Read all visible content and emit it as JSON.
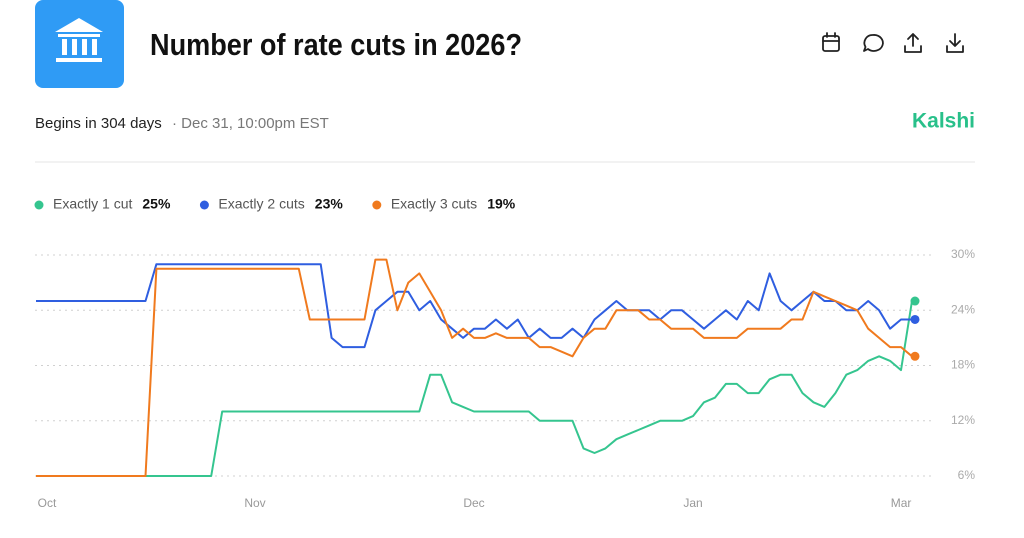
{
  "header": {
    "title": "Number of rate cuts in 2026?",
    "begins": "Begins in 304 days",
    "date": "· Dec 31, 10:00pm EST",
    "brand": "Kalshi"
  },
  "chart_data": {
    "type": "line",
    "categories": [
      null,
      "Oct",
      null,
      null,
      null,
      null,
      null,
      null,
      null,
      null,
      null,
      null,
      null,
      null,
      null,
      null,
      null,
      null,
      null,
      null,
      "Nov",
      null,
      null,
      null,
      null,
      null,
      null,
      null,
      null,
      null,
      null,
      null,
      null,
      null,
      null,
      null,
      null,
      null,
      null,
      null,
      "Dec",
      null,
      null,
      null,
      null,
      null,
      null,
      null,
      null,
      null,
      null,
      null,
      null,
      null,
      null,
      null,
      null,
      null,
      null,
      null,
      "Jan",
      null,
      null,
      null,
      null,
      null,
      null,
      null,
      null,
      null,
      null,
      null,
      null,
      null,
      null,
      null,
      null,
      null,
      null,
      "Mar",
      null
    ],
    "ylim": [
      6,
      30
    ],
    "yticks": [
      {
        "value": 6,
        "label": "6%"
      },
      {
        "value": 12,
        "label": "12%"
      },
      {
        "value": 18,
        "label": "18%"
      },
      {
        "value": 24,
        "label": "24%"
      },
      {
        "value": 30,
        "label": "30%"
      }
    ],
    "grid": true,
    "series": [
      {
        "name": "Exactly 1 cut",
        "color": "#35c58f",
        "values": [
          6,
          6,
          6,
          6,
          6,
          6,
          6,
          6,
          6,
          6,
          6,
          6,
          6,
          6,
          6,
          6,
          6,
          13,
          13,
          13,
          13,
          13,
          13,
          13,
          13,
          13,
          13,
          13,
          13,
          13,
          13,
          13,
          13,
          13,
          13,
          13,
          17,
          17,
          14,
          13.5,
          13,
          13,
          13,
          13,
          13,
          13,
          12,
          12,
          12,
          12,
          9,
          8.5,
          9,
          10,
          10.5,
          11,
          11.5,
          12,
          12,
          12,
          12.5,
          14,
          14.5,
          16,
          16,
          15,
          15,
          16.5,
          17,
          17,
          15,
          14,
          13.5,
          15,
          17,
          17.5,
          18.5,
          19,
          18.5,
          17.5,
          25
        ],
        "value_labels": [
          null,
          null,
          null,
          null,
          null,
          null,
          null,
          null,
          null,
          null,
          null,
          null,
          null,
          null,
          null,
          null,
          null,
          null,
          null,
          null,
          null,
          null,
          null,
          null,
          null,
          null,
          null,
          null,
          null,
          null,
          null,
          null,
          null,
          null,
          null,
          null,
          null,
          null,
          null,
          null,
          null,
          null,
          null,
          null,
          null,
          null,
          null,
          null,
          null,
          null,
          null,
          null,
          null,
          null,
          null,
          null,
          null,
          null,
          null,
          null,
          null,
          null,
          null,
          null,
          null,
          null,
          null,
          null,
          null,
          null,
          null,
          null,
          null,
          null,
          null,
          null,
          null,
          null,
          null,
          null,
          "25%"
        ]
      },
      {
        "name": "Exactly 2 cuts",
        "color": "#2f5ee0",
        "values": [
          25,
          25,
          25,
          25,
          25,
          25,
          25,
          25,
          25,
          25,
          25,
          29,
          29,
          29,
          29,
          29,
          29,
          29,
          29,
          29,
          29,
          29,
          29,
          29,
          29,
          29,
          29,
          21,
          20,
          20,
          20,
          24,
          25,
          26,
          26,
          24,
          25,
          23,
          22,
          21,
          22,
          22,
          23,
          22,
          23,
          21,
          22,
          21,
          21,
          22,
          21,
          23,
          24,
          25,
          24,
          24,
          24,
          23,
          24,
          24,
          23,
          22,
          23,
          24,
          23,
          25,
          24,
          28,
          25,
          24,
          25,
          26,
          25,
          25,
          24,
          24,
          25,
          24,
          22,
          23,
          23
        ],
        "value_labels": [
          null,
          null,
          null,
          null,
          null,
          null,
          null,
          null,
          null,
          null,
          null,
          null,
          null,
          null,
          null,
          null,
          null,
          null,
          null,
          null,
          null,
          null,
          null,
          null,
          null,
          null,
          null,
          null,
          null,
          null,
          null,
          null,
          null,
          null,
          null,
          null,
          null,
          null,
          null,
          null,
          null,
          null,
          null,
          null,
          null,
          null,
          null,
          null,
          null,
          null,
          null,
          null,
          null,
          null,
          null,
          null,
          null,
          null,
          null,
          null,
          null,
          null,
          null,
          null,
          null,
          null,
          null,
          null,
          null,
          null,
          null,
          null,
          null,
          null,
          null,
          null,
          null,
          null,
          null,
          null,
          "23%"
        ]
      },
      {
        "name": "Exactly 3 cuts",
        "color": "#f07a1e",
        "values": [
          6,
          6,
          6,
          6,
          6,
          6,
          6,
          6,
          6,
          6,
          6,
          28.5,
          28.5,
          28.5,
          28.5,
          28.5,
          28.5,
          28.5,
          28.5,
          28.5,
          28.5,
          28.5,
          28.5,
          28.5,
          28.5,
          23,
          23,
          23,
          23,
          23,
          23,
          29.5,
          29.5,
          24,
          27,
          28,
          26,
          24,
          21,
          22,
          21,
          21,
          21.5,
          21,
          21,
          21,
          20,
          20,
          19.5,
          19,
          21,
          22,
          22,
          24,
          24,
          24,
          23,
          23,
          22,
          22,
          22,
          21,
          21,
          21,
          21,
          22,
          22,
          22,
          22,
          23,
          23,
          26,
          25.5,
          25,
          24.5,
          24,
          22,
          21,
          20,
          20,
          19
        ],
        "value_labels": [
          null,
          null,
          null,
          null,
          null,
          null,
          null,
          null,
          null,
          null,
          null,
          null,
          null,
          null,
          null,
          null,
          null,
          null,
          null,
          null,
          null,
          null,
          null,
          null,
          null,
          null,
          null,
          null,
          null,
          null,
          null,
          null,
          null,
          null,
          null,
          null,
          null,
          null,
          null,
          null,
          null,
          null,
          null,
          null,
          null,
          null,
          null,
          null,
          null,
          null,
          null,
          null,
          null,
          null,
          null,
          null,
          null,
          null,
          null,
          null,
          null,
          null,
          null,
          null,
          null,
          null,
          null,
          null,
          null,
          null,
          null,
          null,
          null,
          null,
          null,
          null,
          null,
          null,
          null,
          null,
          "19%"
        ]
      }
    ]
  }
}
